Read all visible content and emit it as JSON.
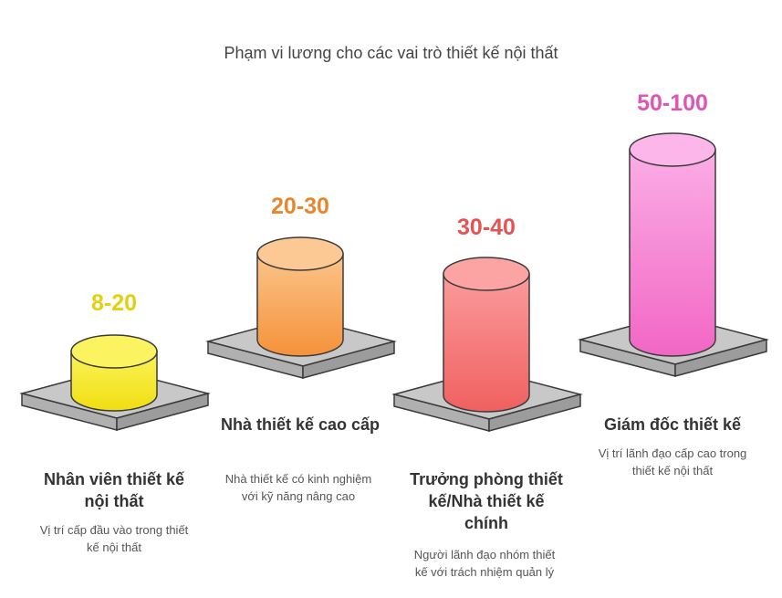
{
  "title": "Phạm vi lương cho các vai trò thiết kế nội thất",
  "colors": {
    "role1": "#f2e41a",
    "role2": "#f59a3c",
    "role3": "#f26b6b",
    "role4": "#f26ec6"
  },
  "roles": [
    {
      "value": "8-20",
      "label": "Nhân viên thiết kế nội thất",
      "description": "Vị trí cấp đầu vào trong thiết kế nội thất",
      "color_key": "role1"
    },
    {
      "value": "20-30",
      "label": "Nhà thiết kế cao cấp",
      "description": "Nhà thiết kế có kinh nghiệm với kỹ năng nâng cao",
      "color_key": "role2"
    },
    {
      "value": "30-40",
      "label": "Trưởng phòng thiết kế/Nhà thiết kế chính",
      "description": "Người lãnh đạo nhóm thiết kế với trách nhiệm quản lý",
      "color_key": "role3"
    },
    {
      "value": "50-100",
      "label": "Giám đốc thiết kế",
      "description": "Vị trí lãnh đạo cấp cao trong thiết kế nội thất",
      "color_key": "role4"
    }
  ]
}
